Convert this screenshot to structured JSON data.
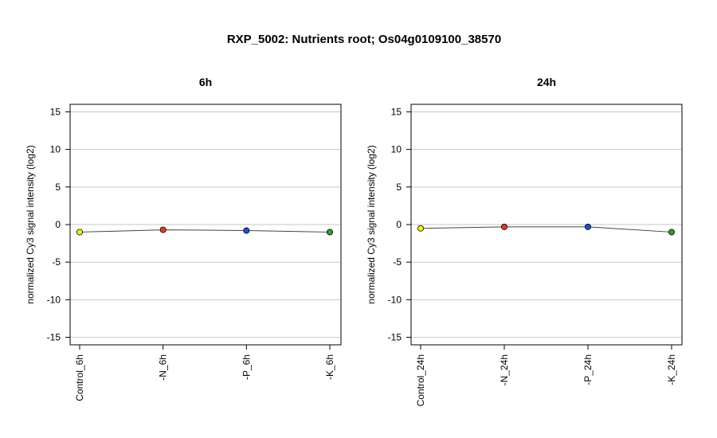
{
  "figure": {
    "title": "RXP_5002: Nutrients root; Os04g0109100_38570"
  },
  "chart_data": [
    {
      "type": "line",
      "title": "6h",
      "ylabel": "normalized Cy3 signal intensity (log2)",
      "xlabel": "",
      "categories": [
        "Control_6h",
        "-N_6h",
        "-P_6h",
        "-K_6h"
      ],
      "values": [
        -1.0,
        -0.7,
        -0.8,
        -1.0
      ],
      "point_colors": [
        "#f2f20d",
        "#e03a2a",
        "#2050d0",
        "#2ca02c"
      ],
      "ylim": [
        -16,
        16
      ],
      "yticks": [
        -15,
        -10,
        -5,
        0,
        5,
        10,
        15
      ],
      "grid": true,
      "legend": "none"
    },
    {
      "type": "line",
      "title": "24h",
      "ylabel": "normalized Cy3 signal intensity (log2)",
      "xlabel": "",
      "categories": [
        "Control_24h",
        "-N_24h",
        "-P_24h",
        "-K_24h"
      ],
      "values": [
        -0.5,
        -0.3,
        -0.3,
        -1.0
      ],
      "point_colors": [
        "#f2f20d",
        "#e03a2a",
        "#2050d0",
        "#2ca02c"
      ],
      "ylim": [
        -16,
        16
      ],
      "yticks": [
        -15,
        -10,
        -5,
        0,
        5,
        10,
        15
      ],
      "grid": true,
      "legend": "none"
    }
  ]
}
